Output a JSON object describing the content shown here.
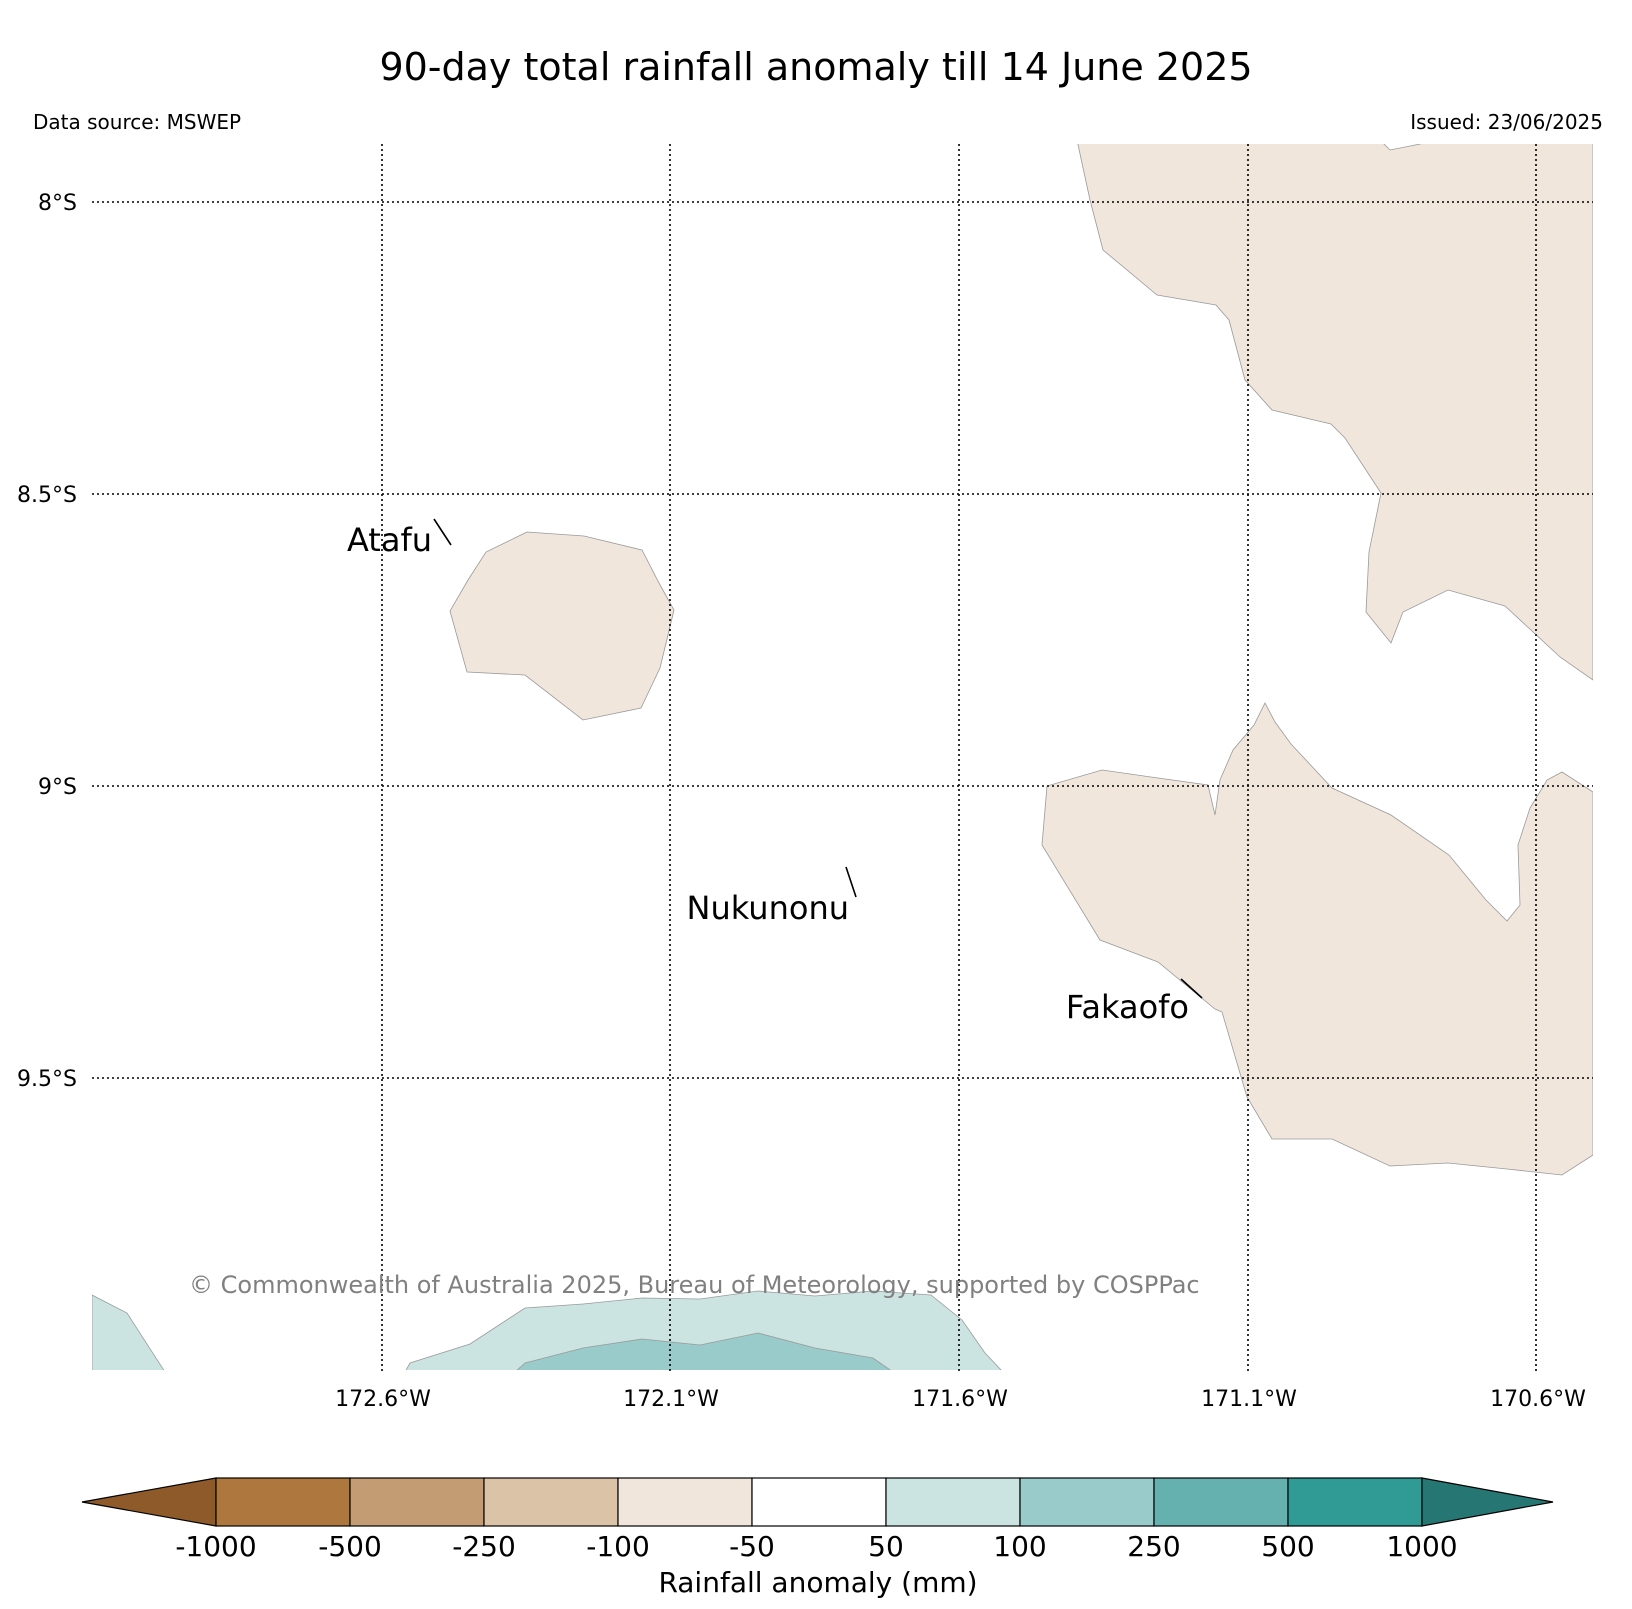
{
  "title": "90-day total rainfall anomaly till 14 June 2025",
  "data_source": "Data source: MSWEP",
  "issued": "Issued: 23/06/2025",
  "copyright": "© Commonwealth of Australia 2025, Bureau of Meteorology, supported by COSPPac",
  "latitude_labels": [
    "8°S",
    "8.5°S",
    "9°S",
    "9.5°S"
  ],
  "longitude_labels": [
    "172.6°W",
    "172.1°W",
    "171.6°W",
    "171.1°W",
    "170.6°W"
  ],
  "places": [
    "Atafu",
    "Nukunonu",
    "Fakaofo"
  ],
  "legend": {
    "label": "Rainfall anomaly (mm)",
    "ticks": [
      "-1000",
      "-500",
      "-250",
      "-100",
      "-50",
      "50",
      "100",
      "250",
      "500",
      "1000"
    ],
    "colors": [
      "#8f5a29",
      "#ad773e",
      "#c49c74",
      "#dbc3a8",
      "#f0e6dc",
      "#ffffff",
      "#cbe4e2",
      "#98cbc9",
      "#64b1af",
      "#309b95",
      "#267773"
    ]
  },
  "fill_colors": {
    "dry": "#f0e6dc",
    "wet_light": "#cbe4e2",
    "wet_medium": "#98cbc9"
  }
}
